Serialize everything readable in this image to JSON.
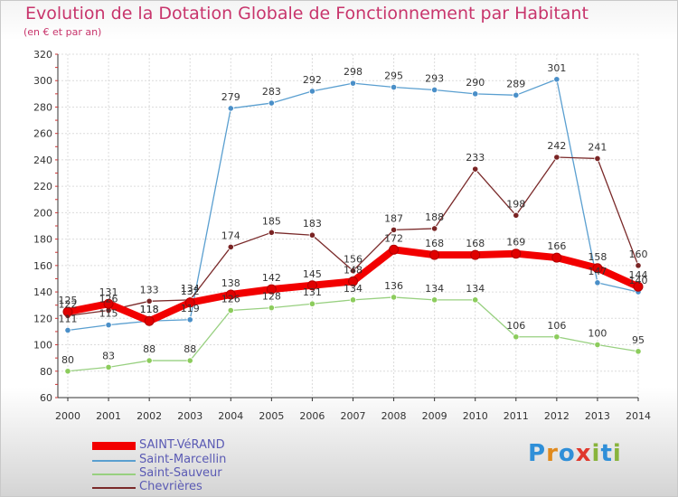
{
  "title": "Evolution de la Dotation Globale de Fonctionnement par Habitant",
  "subtitle": "(en € et par an)",
  "logo": {
    "letters": [
      "P",
      "r",
      "o",
      "x",
      "i",
      "t",
      "i"
    ],
    "colors": [
      "#2f8fd8",
      "#e08a1e",
      "#2f8fd8",
      "#e0382c",
      "#88b43c",
      "#2f8fd8",
      "#88b43c"
    ]
  },
  "chart_data": {
    "type": "line",
    "title": "Evolution de la Dotation Globale de Fonctionnement par Habitant",
    "subtitle": "(en € et par an)",
    "xlabel": "",
    "ylabel": "",
    "categories": [
      "2000",
      "2001",
      "2002",
      "2003",
      "2004",
      "2005",
      "2006",
      "2007",
      "2008",
      "2009",
      "2010",
      "2011",
      "2012",
      "2013",
      "2014"
    ],
    "ylim": [
      60,
      320
    ],
    "yticks": [
      60,
      80,
      100,
      120,
      140,
      160,
      180,
      200,
      220,
      240,
      260,
      280,
      300,
      320
    ],
    "grid": true,
    "legend_position": "bottom-left",
    "series": [
      {
        "name": "Saint-Marcellin",
        "color": "#5a9fd0",
        "markerColor": "#4a8fc8",
        "values": [
          111,
          115,
          118,
          119,
          279,
          283,
          292,
          298,
          295,
          293,
          290,
          289,
          301,
          147,
          140
        ],
        "labels": [
          "111",
          "115",
          "118",
          "119",
          "279",
          "283",
          "292",
          "298",
          "295",
          "293",
          "290",
          "289",
          "301",
          "147",
          "140"
        ]
      },
      {
        "name": "Saint-Sauveur",
        "color": "#98d080",
        "markerColor": "#8ccc5c",
        "values": [
          80,
          83,
          88,
          88,
          126,
          128,
          131,
          134,
          136,
          134,
          134,
          106,
          106,
          100,
          95
        ],
        "labels": [
          "80",
          "83",
          "88",
          "88",
          "126",
          "128",
          "131",
          "134",
          "136",
          "134",
          "134",
          "106",
          "106",
          "100",
          "95"
        ]
      },
      {
        "name": "Chevrières",
        "color": "#7a2a2a",
        "markerColor": "#7a2424",
        "values": [
          122,
          126,
          133,
          134,
          174,
          185,
          183,
          156,
          187,
          188,
          233,
          198,
          242,
          241,
          160
        ],
        "labels": [
          "122",
          "126",
          "133",
          "134",
          "174",
          "185",
          "183",
          "156",
          "187",
          "188",
          "233",
          "198",
          "242",
          "241",
          "160"
        ]
      },
      {
        "name": "SAINT-VéRAND",
        "color": "#f20000",
        "markerColor": "#e00000",
        "values": [
          125,
          131,
          118,
          132,
          138,
          142,
          145,
          148,
          172,
          168,
          168,
          169,
          166,
          158,
          144
        ],
        "labels": [
          "125",
          "131",
          "118",
          "132",
          "138",
          "142",
          "145",
          "148",
          "172",
          "168",
          "168",
          "169",
          "166",
          "158",
          "144"
        ]
      }
    ]
  }
}
